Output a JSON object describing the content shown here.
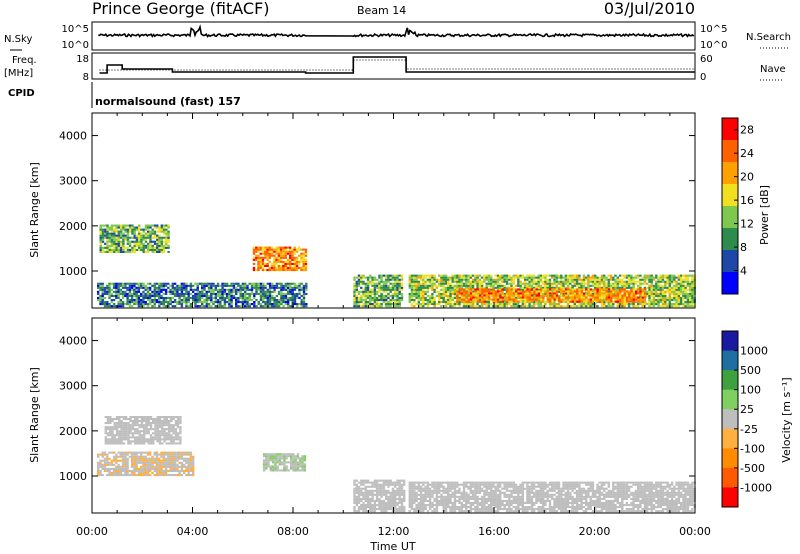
{
  "header": {
    "station": "Prince George (fitACF)",
    "beam": "Beam 14",
    "date": "03/Jul/2010"
  },
  "strip": {
    "nsky_label": "N.Sky",
    "nsky_top": "10^5",
    "nsky_bottom": "10^0",
    "nsearch_label": "N.Search",
    "nsearch_top": "10^5",
    "nsearch_bottom": "10^0",
    "freq_label": "Freq.",
    "freq_unit": "[MHz]",
    "freq_top": "18",
    "freq_bottom": "8",
    "nave_label": "Nave",
    "nave_top": "60",
    "nave_bottom": "0",
    "cpid_label": "CPID",
    "cpid_value": "normalsound (fast) 157"
  },
  "colors": {
    "power_scale": [
      "#0000ff",
      "#1f47a8",
      "#2e8b4e",
      "#7ec850",
      "#f0e020",
      "#ffa000",
      "#ff6000",
      "#ff0000"
    ],
    "velocity_scale": [
      "#ff0000",
      "#ff5a00",
      "#ff8c00",
      "#ffb040",
      "#bebebe",
      "#7fd060",
      "#3fa040",
      "#1f6fa0",
      "#1a1aa0"
    ]
  },
  "chart_data": [
    {
      "type": "heatmap",
      "panel": "power",
      "xlabel": "",
      "ylabel": "Slant Range [km]",
      "yticks": [
        "1000",
        "2000",
        "3000",
        "4000"
      ],
      "ylim": [
        180,
        4500
      ],
      "xlim": [
        "00:00",
        "24:00"
      ],
      "colorbar_label": "Power [dB]",
      "colorbar_ticks": [
        "4",
        "8",
        "12",
        "16",
        "20",
        "24",
        "28"
      ],
      "colorbar_range": [
        0,
        30
      ],
      "data_gap_ut": [
        "08:30",
        "10:20"
      ],
      "regions": [
        {
          "ut": [
            0.2,
            8.5
          ],
          "range_km": [
            200,
            700
          ],
          "level_db": 8
        },
        {
          "ut": [
            0.3,
            3.0
          ],
          "range_km": [
            1400,
            2000
          ],
          "level_db": 12
        },
        {
          "ut": [
            6.4,
            8.5
          ],
          "range_km": [
            1000,
            1500
          ],
          "level_db": 22
        },
        {
          "ut": [
            10.4,
            12.3
          ],
          "range_km": [
            200,
            900
          ],
          "level_db": 12
        },
        {
          "ut": [
            12.6,
            24.0
          ],
          "range_km": [
            200,
            900
          ],
          "level_db": 14
        },
        {
          "ut": [
            14.5,
            22.0
          ],
          "range_km": [
            300,
            600
          ],
          "level_db": 22
        }
      ]
    },
    {
      "type": "heatmap",
      "panel": "velocity",
      "xlabel": "Time UT",
      "ylabel": "Slant Range [km]",
      "xticks": [
        "00:00",
        "04:00",
        "08:00",
        "12:00",
        "16:00",
        "20:00",
        "00:00"
      ],
      "yticks": [
        "1000",
        "2000",
        "3000",
        "4000"
      ],
      "ylim": [
        180,
        4500
      ],
      "xlim": [
        "00:00",
        "24:00"
      ],
      "colorbar_label": "Velocity [m s⁻¹]",
      "colorbar_ticks": [
        "1000",
        "500",
        "100",
        "25",
        "-25",
        "-100",
        "-500",
        "-1000"
      ],
      "data_gap_ut": [
        "08:30",
        "10:20"
      ],
      "regions": [
        {
          "ut": [
            0.2,
            4.0
          ],
          "range_km": [
            1000,
            1500
          ],
          "velocity_ms": -100
        },
        {
          "ut": [
            0.5,
            3.5
          ],
          "range_km": [
            1700,
            2300
          ],
          "velocity_ms": 0
        },
        {
          "ut": [
            6.8,
            8.5
          ],
          "range_km": [
            1100,
            1500
          ],
          "velocity_ms": 100
        },
        {
          "ut": [
            10.4,
            12.4
          ],
          "range_km": [
            200,
            900
          ],
          "velocity_ms": 0
        },
        {
          "ut": [
            12.6,
            24.0
          ],
          "range_km": [
            200,
            850
          ],
          "velocity_ms": 0
        }
      ]
    }
  ]
}
